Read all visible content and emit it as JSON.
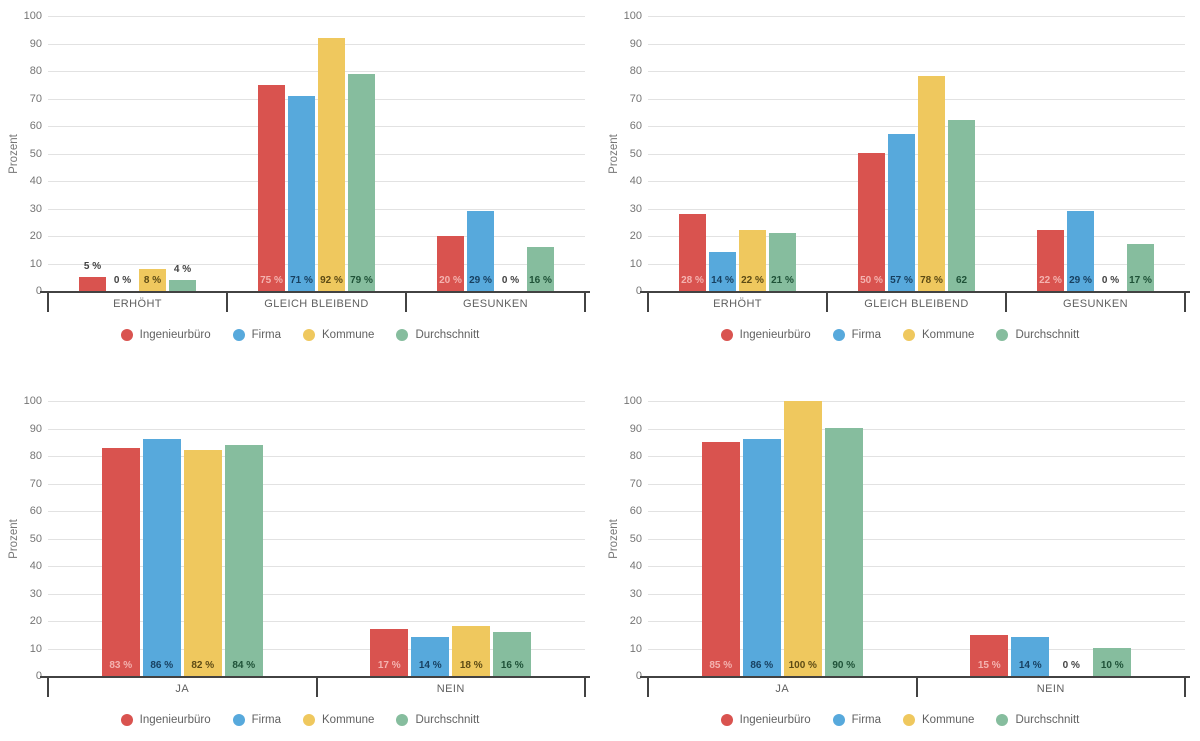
{
  "page": {
    "background": "#ffffff"
  },
  "theme": {
    "axis_color": "#424242",
    "grid_color": "#e2e2e2",
    "ytick_color": "#757575",
    "category_color": "#5f5f5f",
    "legend_text_color": "#616161",
    "outside_label_color": "#424242"
  },
  "chart_data": [
    {
      "type": "bar",
      "ylabel": "Prozent",
      "ylim": [
        0,
        100
      ],
      "ytick_step": 10,
      "grid": true,
      "legend_position": "bottom",
      "categories": [
        "ERHÖHT",
        "GLEICH BLEIBEND",
        "GESUNKEN"
      ],
      "series": [
        {
          "name": "Ingenieurbüro",
          "color": "#d9534f",
          "label_color": "#f4b3b0",
          "values": [
            5,
            75,
            20
          ],
          "labels": [
            "5 %",
            "75 %",
            "20 %"
          ]
        },
        {
          "name": "Firma",
          "color": "#57a9dc",
          "label_color": "#173f5f",
          "values": [
            0,
            71,
            29
          ],
          "labels": [
            "0 %",
            "71 %",
            "29 %"
          ]
        },
        {
          "name": "Kommune",
          "color": "#efc85e",
          "label_color": "#5c4a14",
          "values": [
            8,
            92,
            0
          ],
          "labels": [
            "8 %",
            "92 %",
            "0 %"
          ]
        },
        {
          "name": "Durchschnitt",
          "color": "#86bd9e",
          "label_color": "#1e5137",
          "values": [
            4,
            79,
            16
          ],
          "labels": [
            "4 %",
            "79 %",
            "16 %"
          ]
        }
      ]
    },
    {
      "type": "bar",
      "ylabel": "Prozent",
      "ylim": [
        0,
        100
      ],
      "ytick_step": 10,
      "grid": true,
      "legend_position": "bottom",
      "categories": [
        "ERHÖHT",
        "GLEICH BLEIBEND",
        "GESUNKEN"
      ],
      "series": [
        {
          "name": "Ingenieurbüro",
          "color": "#d9534f",
          "label_color": "#f4b3b0",
          "values": [
            28,
            50,
            22
          ],
          "labels": [
            "28 %",
            "50 %",
            "22 %"
          ]
        },
        {
          "name": "Firma",
          "color": "#57a9dc",
          "label_color": "#173f5f",
          "values": [
            14,
            57,
            29
          ],
          "labels": [
            "14 %",
            "57 %",
            "29 %"
          ]
        },
        {
          "name": "Kommune",
          "color": "#efc85e",
          "label_color": "#5c4a14",
          "values": [
            22,
            78,
            0
          ],
          "labels": [
            "22 %",
            "78 %",
            "0 %"
          ]
        },
        {
          "name": "Durchschnitt",
          "color": "#86bd9e",
          "label_color": "#1e5137",
          "values": [
            21,
            62,
            17
          ],
          "labels": [
            "21 %",
            "62",
            "17 %"
          ]
        }
      ]
    },
    {
      "type": "bar",
      "ylabel": "Prozent",
      "ylim": [
        0,
        100
      ],
      "ytick_step": 10,
      "grid": true,
      "legend_position": "bottom",
      "categories": [
        "JA",
        "NEIN"
      ],
      "series": [
        {
          "name": "Ingenieurbüro",
          "color": "#d9534f",
          "label_color": "#f4b3b0",
          "values": [
            83,
            17
          ],
          "labels": [
            "83 %",
            "17 %"
          ]
        },
        {
          "name": "Firma",
          "color": "#57a9dc",
          "label_color": "#173f5f",
          "values": [
            86,
            14
          ],
          "labels": [
            "86 %",
            "14 %"
          ]
        },
        {
          "name": "Kommune",
          "color": "#efc85e",
          "label_color": "#5c4a14",
          "values": [
            82,
            18
          ],
          "labels": [
            "82 %",
            "18 %"
          ]
        },
        {
          "name": "Durchschnitt",
          "color": "#86bd9e",
          "label_color": "#1e5137",
          "values": [
            84,
            16
          ],
          "labels": [
            "84 %",
            "16 %"
          ]
        }
      ]
    },
    {
      "type": "bar",
      "ylabel": "Prozent",
      "ylim": [
        0,
        100
      ],
      "ytick_step": 10,
      "grid": true,
      "legend_position": "bottom",
      "categories": [
        "JA",
        "NEIN"
      ],
      "series": [
        {
          "name": "Ingenieurbüro",
          "color": "#d9534f",
          "label_color": "#f4b3b0",
          "values": [
            85,
            15
          ],
          "labels": [
            "85 %",
            "15 %"
          ]
        },
        {
          "name": "Firma",
          "color": "#57a9dc",
          "label_color": "#173f5f",
          "values": [
            86,
            14
          ],
          "labels": [
            "86 %",
            "14 %"
          ]
        },
        {
          "name": "Kommune",
          "color": "#efc85e",
          "label_color": "#5c4a14",
          "values": [
            100,
            0
          ],
          "labels": [
            "100 %",
            "0 %"
          ]
        },
        {
          "name": "Durchschnitt",
          "color": "#86bd9e",
          "label_color": "#1e5137",
          "values": [
            90,
            10
          ],
          "labels": [
            "90 %",
            "10 %"
          ]
        }
      ]
    }
  ]
}
